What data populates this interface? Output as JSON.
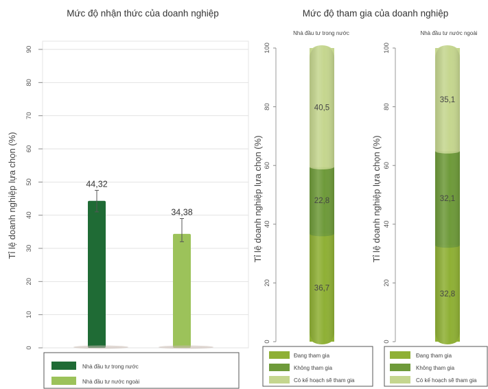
{
  "left_chart": {
    "title": "Mức độ nhận thức của doanh nghiệp",
    "ylabel": "Tỉ lệ doanh nghiệp lựa chọn (%)",
    "ticks": [
      "0",
      "10",
      "20",
      "30",
      "40",
      "50",
      "60",
      "70",
      "80",
      "90"
    ],
    "legend": [
      {
        "label": "Nhà đầu tư trong nước",
        "color": "#1f6b35"
      },
      {
        "label": "Nhà đầu tư nước ngoài",
        "color": "#9cc25a"
      }
    ]
  },
  "right_chart": {
    "title": "Mức độ tham gia của doanh nghiệp",
    "ylabel": "Tỉ lệ doanh nghiệp lựa chọn (%)",
    "ticks": [
      "0",
      "20",
      "40",
      "60",
      "80",
      "100"
    ],
    "panels": [
      {
        "title": "Nhà đầu tư trong nước",
        "values": [
          "36,7",
          "22,8",
          "40,5"
        ]
      },
      {
        "title": "Nhà đầu tư nước ngoài",
        "values": [
          "32,8",
          "32,1",
          "35,1"
        ]
      }
    ],
    "legend_labels": [
      "Đang tham gia",
      "Không tham gia",
      "Có kế hoạch sẽ tham gia"
    ]
  },
  "colors": {
    "dark_green": "#1f6b35",
    "light_green": "#9cc25a",
    "seg_engaged": "#8fb035",
    "seg_not": "#6e9a3a",
    "seg_plan": "#c5d68f"
  },
  "chart_data": [
    {
      "type": "bar",
      "title": "Mức độ nhận thức của doanh nghiệp",
      "ylabel": "Tỉ lệ doanh nghiệp lựa chọn (%)",
      "categories": [
        "Nhà đầu tư trong nước",
        "Nhà đầu tư nước ngoài"
      ],
      "values": [
        44.32,
        34.38
      ],
      "value_labels": [
        "44,32",
        "34,38"
      ],
      "error_bars": [
        [
          41,
          47.5
        ],
        [
          32,
          39
        ]
      ],
      "ylim": [
        0,
        90
      ],
      "legend": "bottom",
      "grid": true
    },
    {
      "type": "bar",
      "stacked": true,
      "title": "Mức độ tham gia của doanh nghiệp",
      "ylabel": "Tỉ lệ doanh nghiệp lựa chọn (%)",
      "categories": [
        "Nhà đầu tư trong nước",
        "Nhà đầu tư nước ngoài"
      ],
      "series": [
        {
          "name": "Đang tham gia",
          "values": [
            36.7,
            32.8
          ]
        },
        {
          "name": "Không tham gia",
          "values": [
            22.8,
            32.1
          ]
        },
        {
          "name": "Có kế hoạch sẽ tham gia",
          "values": [
            40.5,
            35.1
          ]
        }
      ],
      "ylim": [
        0,
        100
      ],
      "legend": "bottom"
    }
  ]
}
